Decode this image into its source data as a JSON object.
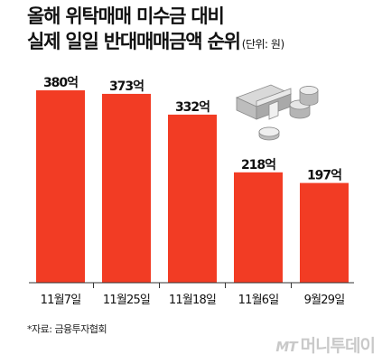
{
  "title": {
    "line1": "올해 위탁매매 미수금 대비",
    "line2": "실제 일일 반대매매금액 순위",
    "unit": "(단위: 원)"
  },
  "chart_data": {
    "type": "bar",
    "categories": [
      "11월7일",
      "11월25일",
      "11월18일",
      "11월6일",
      "9월29일"
    ],
    "values": [
      380,
      373,
      332,
      218,
      197
    ],
    "value_labels": [
      "380억",
      "373억",
      "332억",
      "218억",
      "197억"
    ],
    "title": "올해 위탁매매 미수금 대비 실제 일일 반대매매금액 순위",
    "xlabel": "",
    "ylabel": "",
    "unit": "억",
    "grid": false,
    "bar_color": "#f23c24"
  },
  "source": "*자료: 금융투자협회",
  "brand": {
    "mark": "MT",
    "name": "머니투데이"
  },
  "colors": {
    "bar": "#f23c24",
    "text": "#111111",
    "watermark": "#c9c9c9"
  },
  "illustration": "money-stack-and-coins-icon"
}
